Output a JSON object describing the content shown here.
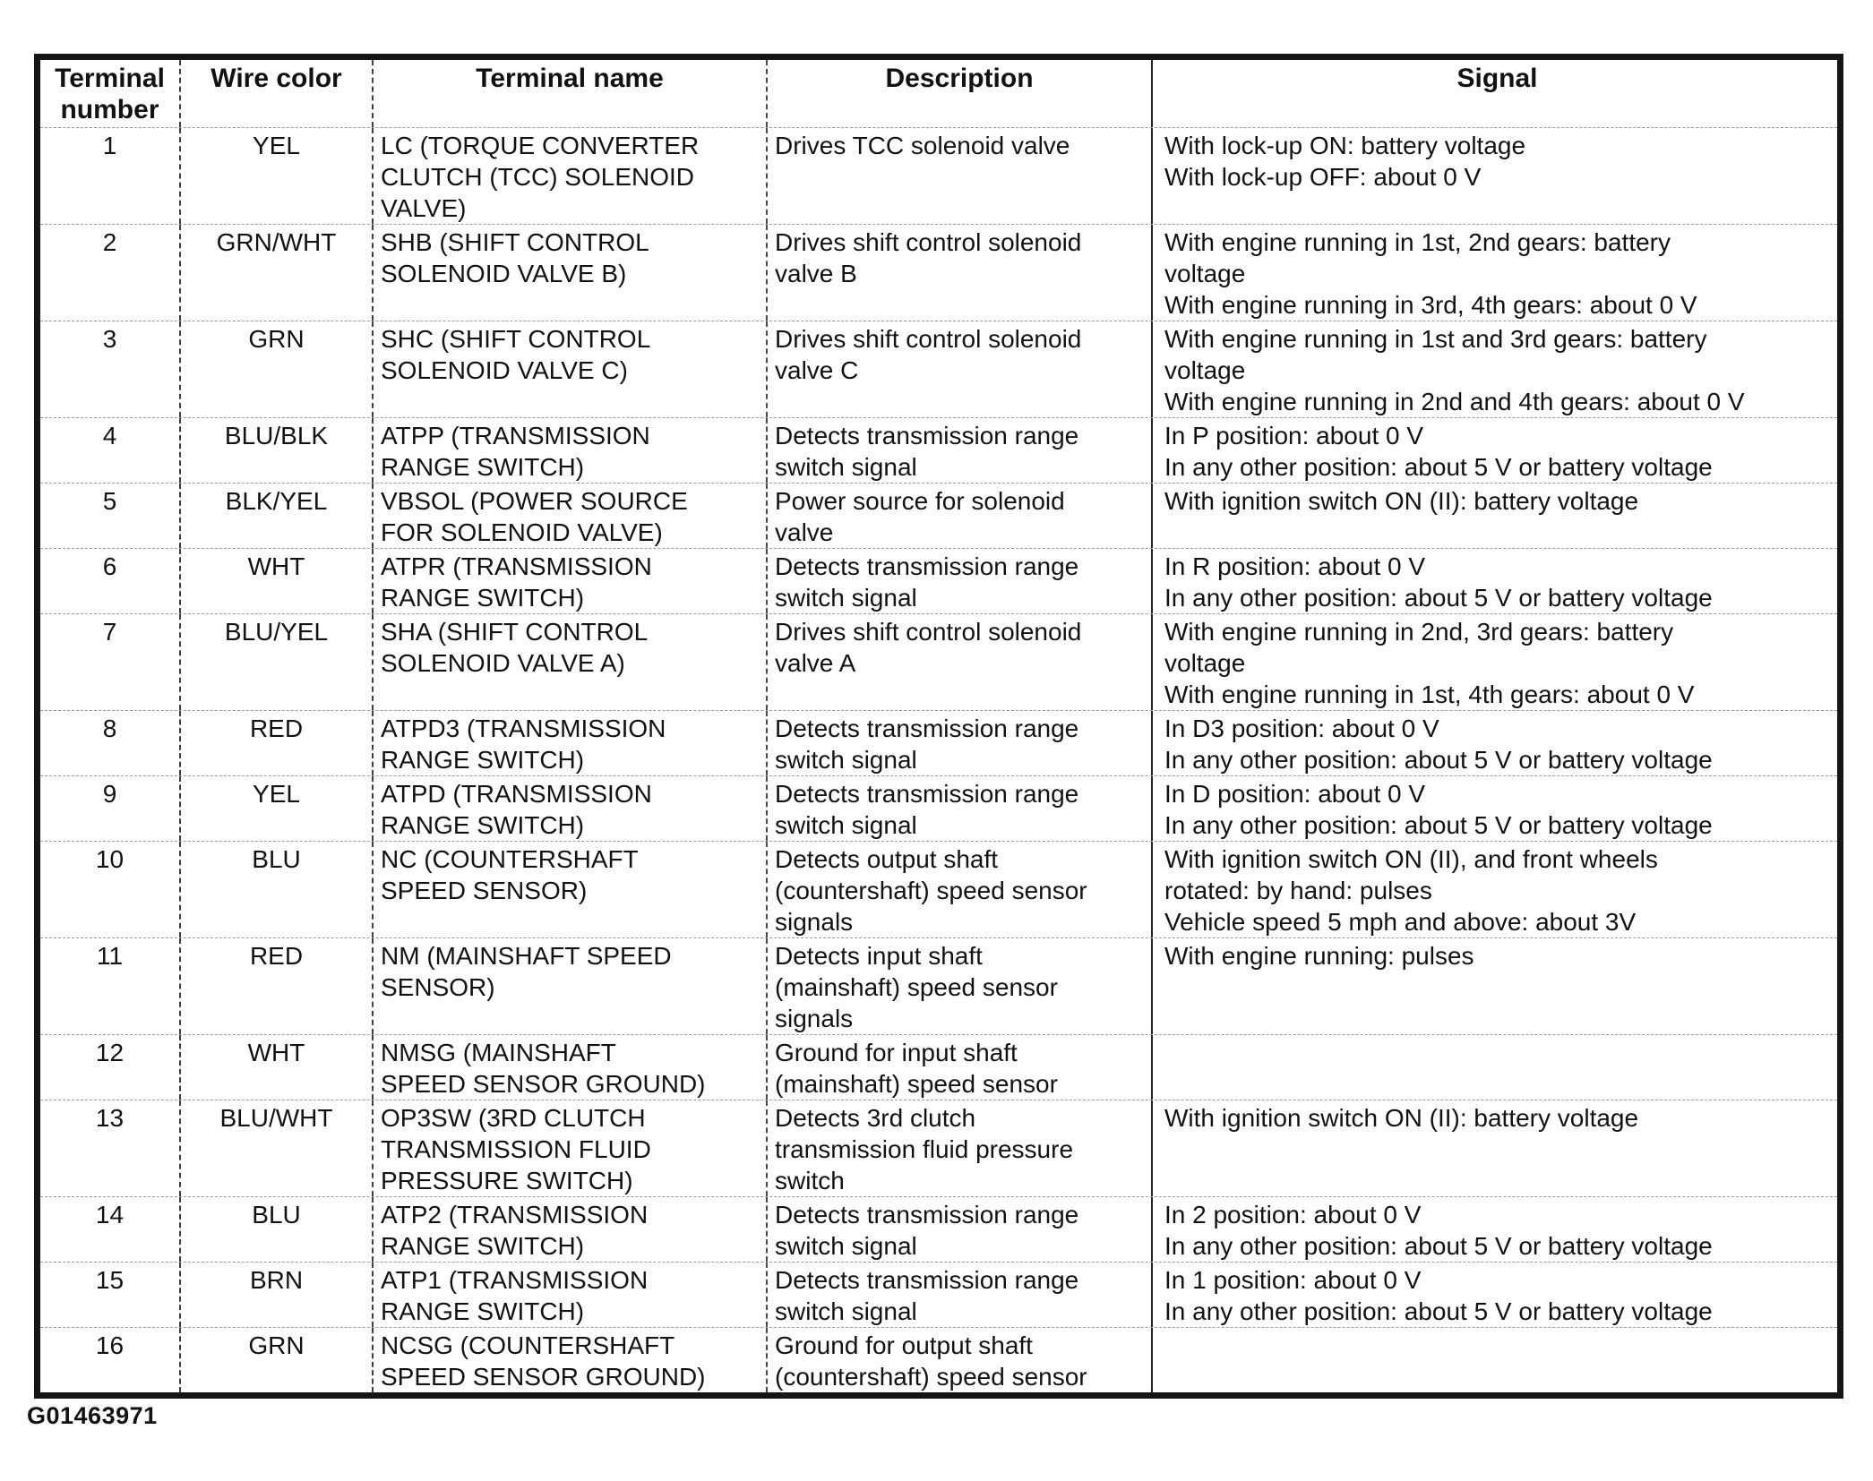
{
  "document": {
    "caption": "G01463971"
  },
  "table": {
    "headers": [
      "Terminal\nnumber",
      "Wire color",
      "Terminal name",
      "Description",
      "Signal"
    ],
    "rows": [
      {
        "number": "1",
        "wire_color": "YEL",
        "terminal_name": "LC (TORQUE CONVERTER\nCLUTCH (TCC) SOLENOID\nVALVE)",
        "description": "Drives TCC solenoid valve",
        "signal": "With lock-up ON: battery voltage\nWith lock-up OFF: about 0 V"
      },
      {
        "number": "2",
        "wire_color": "GRN/WHT",
        "terminal_name": "SHB (SHIFT CONTROL\nSOLENOID VALVE B)",
        "description": "Drives shift control solenoid\nvalve B",
        "signal": "With engine running in 1st, 2nd gears: battery\nvoltage\nWith engine running in 3rd, 4th gears: about 0 V"
      },
      {
        "number": "3",
        "wire_color": "GRN",
        "terminal_name": "SHC (SHIFT CONTROL\nSOLENOID VALVE C)",
        "description": "Drives shift control solenoid\nvalve C",
        "signal": "With engine running in 1st and 3rd gears: battery\nvoltage\nWith engine running in 2nd and 4th gears: about 0 V"
      },
      {
        "number": "4",
        "wire_color": "BLU/BLK",
        "terminal_name": "ATPP (TRANSMISSION\nRANGE SWITCH)",
        "description": "Detects transmission range\nswitch signal",
        "signal": "In P position: about 0 V\nIn any other position: about 5 V or battery voltage"
      },
      {
        "number": "5",
        "wire_color": "BLK/YEL",
        "terminal_name": "VBSOL (POWER SOURCE\nFOR SOLENOID VALVE)",
        "description": "Power source for solenoid\nvalve",
        "signal": "With ignition switch ON (II): battery voltage"
      },
      {
        "number": "6",
        "wire_color": "WHT",
        "terminal_name": "ATPR (TRANSMISSION\nRANGE SWITCH)",
        "description": "Detects transmission range\nswitch signal",
        "signal": "In R position: about 0 V\nIn any other position: about 5 V or battery voltage"
      },
      {
        "number": "7",
        "wire_color": "BLU/YEL",
        "terminal_name": "SHA (SHIFT CONTROL\nSOLENOID VALVE A)",
        "description": "Drives shift control solenoid\nvalve A",
        "signal": "With engine running in 2nd, 3rd gears: battery\nvoltage\nWith engine running in 1st, 4th gears: about 0 V"
      },
      {
        "number": "8",
        "wire_color": "RED",
        "terminal_name": "ATPD3 (TRANSMISSION\nRANGE SWITCH)",
        "description": "Detects transmission range\nswitch signal",
        "signal": "In D3 position: about 0 V\nIn any other position: about 5 V or battery voltage"
      },
      {
        "number": "9",
        "wire_color": "YEL",
        "terminal_name": "ATPD (TRANSMISSION\nRANGE SWITCH)",
        "description": "Detects transmission range\nswitch signal",
        "signal": "In D position: about 0 V\nIn any other position: about 5 V or battery voltage"
      },
      {
        "number": "10",
        "wire_color": "BLU",
        "terminal_name": "NC (COUNTERSHAFT\nSPEED SENSOR)",
        "description": "Detects output shaft\n(countershaft) speed sensor\nsignals",
        "signal": "With ignition switch ON (II), and front wheels\nrotated: by hand: pulses\nVehicle speed 5 mph and above: about 3V"
      },
      {
        "number": "11",
        "wire_color": "RED",
        "terminal_name": "NM (MAINSHAFT SPEED\nSENSOR)",
        "description": "Detects input shaft\n(mainshaft) speed sensor\nsignals",
        "signal": "With engine running: pulses"
      },
      {
        "number": "12",
        "wire_color": "WHT",
        "terminal_name": "NMSG (MAINSHAFT\nSPEED SENSOR GROUND)",
        "description": "Ground for input shaft\n(mainshaft) speed sensor",
        "signal": ""
      },
      {
        "number": "13",
        "wire_color": "BLU/WHT",
        "terminal_name": "OP3SW (3RD CLUTCH\nTRANSMISSION FLUID\nPRESSURE SWITCH)",
        "description": "Detects 3rd clutch\ntransmission fluid pressure\nswitch",
        "signal": "With ignition switch ON (II): battery voltage"
      },
      {
        "number": "14",
        "wire_color": "BLU",
        "terminal_name": "ATP2 (TRANSMISSION\nRANGE SWITCH)",
        "description": "Detects transmission range\nswitch signal",
        "signal": "In 2 position: about 0 V\nIn any other position: about 5 V or battery voltage"
      },
      {
        "number": "15",
        "wire_color": "BRN",
        "terminal_name": "ATP1 (TRANSMISSION\nRANGE SWITCH)",
        "description": "Detects transmission range\nswitch signal",
        "signal": "In 1 position: about 0 V\nIn any other position: about 5 V or battery voltage"
      },
      {
        "number": "16",
        "wire_color": "GRN",
        "terminal_name": "NCSG (COUNTERSHAFT\nSPEED SENSOR GROUND)",
        "description": "Ground for output shaft\n(countershaft) speed sensor",
        "signal": ""
      }
    ]
  }
}
